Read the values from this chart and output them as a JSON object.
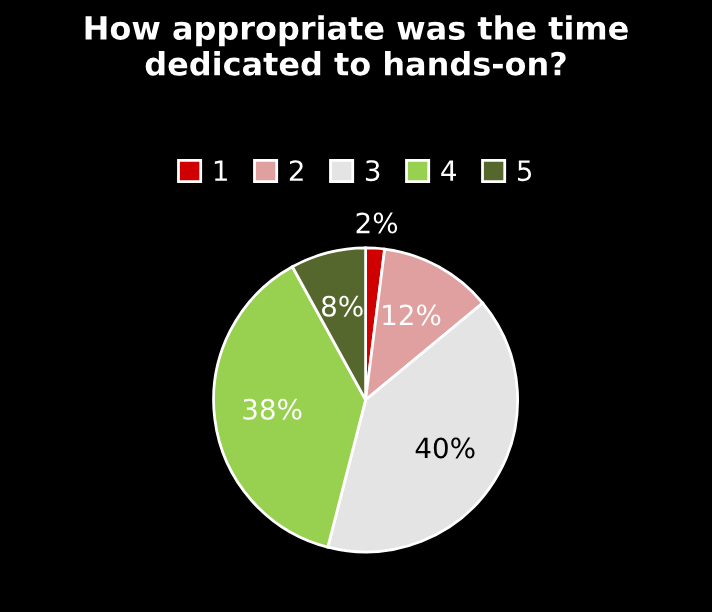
{
  "chart_data": {
    "type": "pie",
    "title": "How appropriate was the time dedicated to hands-on?",
    "categories": [
      "1",
      "2",
      "3",
      "4",
      "5"
    ],
    "values": [
      2,
      12,
      40,
      38,
      8
    ],
    "value_labels": [
      "2%",
      "12%",
      "40%",
      "38%",
      "8%"
    ],
    "colors": [
      "#d00000",
      "#e0a0a0",
      "#e4e4e4",
      "#98d050",
      "#56672e"
    ],
    "legend": "top"
  }
}
